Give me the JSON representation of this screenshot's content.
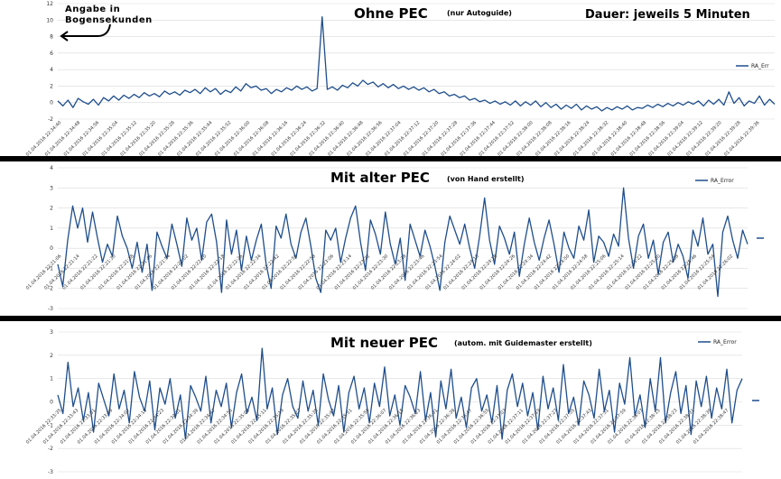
{
  "colors": {
    "series": "#1f4e8c",
    "separator": "#000000",
    "grid": "#d9d9d9"
  },
  "annotations": {
    "unit_note_line1": "Angabe in",
    "unit_note_line2": "Bogensekunden",
    "duration": "Dauer: jeweils 5 Minuten"
  },
  "chart_data": [
    {
      "type": "line",
      "title": "Ohne PEC",
      "subtitle": "(nur Autoguide)",
      "legend": "RA_Err",
      "legend_position": "right",
      "grid": true,
      "ylim": [
        -2,
        12
      ],
      "yticks": [
        -2,
        0,
        2,
        4,
        6,
        8,
        10,
        12
      ],
      "xlabel_prefix": "01.04.2016 22:",
      "x_time_start": "22:34:40",
      "x_step_seconds": 8,
      "x_label_count": 38,
      "series": [
        {
          "name": "RA_Err",
          "values": [
            0.2,
            -0.4,
            0.3,
            -0.6,
            0.5,
            0.1,
            -0.2,
            0.4,
            -0.3,
            0.6,
            0.2,
            0.8,
            0.3,
            0.9,
            0.5,
            1.0,
            0.6,
            1.2,
            0.8,
            1.1,
            0.7,
            1.4,
            1.0,
            1.3,
            0.9,
            1.5,
            1.2,
            1.6,
            1.1,
            1.8,
            1.3,
            1.7,
            1.0,
            1.5,
            1.2,
            1.9,
            1.4,
            2.3,
            1.8,
            2.0,
            1.5,
            1.7,
            1.1,
            1.6,
            1.3,
            1.8,
            1.5,
            2.0,
            1.6,
            1.9,
            1.4,
            1.7,
            10.4,
            1.6,
            1.9,
            1.5,
            2.1,
            1.8,
            2.4,
            2.0,
            2.7,
            2.2,
            2.5,
            1.9,
            2.3,
            1.8,
            2.2,
            1.7,
            2.0,
            1.6,
            1.9,
            1.5,
            1.8,
            1.3,
            1.6,
            1.1,
            1.3,
            0.8,
            1.0,
            0.6,
            0.8,
            0.3,
            0.5,
            0.1,
            0.3,
            -0.1,
            0.2,
            -0.2,
            0.1,
            -0.3,
            0.2,
            -0.4,
            0.1,
            -0.3,
            0.2,
            -0.5,
            0.0,
            -0.6,
            -0.2,
            -0.8,
            -0.3,
            -0.7,
            -0.2,
            -0.9,
            -0.4,
            -0.8,
            -0.5,
            -1.0,
            -0.6,
            -0.9,
            -0.5,
            -0.8,
            -0.4,
            -0.9,
            -0.6,
            -0.7,
            -0.3,
            -0.6,
            -0.2,
            -0.5,
            -0.1,
            -0.4,
            0.0,
            -0.3,
            0.1,
            -0.2,
            0.2,
            -0.4,
            0.3,
            -0.2,
            0.4,
            -0.3,
            1.3,
            -0.1,
            0.6,
            -0.4,
            0.2,
            -0.1,
            0.8,
            -0.3,
            0.4,
            -0.2
          ]
        }
      ]
    },
    {
      "type": "line",
      "title": "Mit alter PEC",
      "subtitle": "(von Hand erstellt)",
      "legend": "RA_Error",
      "legend_position": "top-right",
      "grid": true,
      "ylim": [
        -3,
        4
      ],
      "yticks": [
        -3,
        -2,
        -1,
        0,
        1,
        2,
        3,
        4
      ],
      "xlabel_prefix": "01.04.2016 22:",
      "x_time_start": "22:21:06",
      "x_step_seconds": 8,
      "x_label_count": 38,
      "series": [
        {
          "name": "RA_Error",
          "values": [
            -0.8,
            -1.9,
            0.4,
            2.1,
            1.0,
            2.0,
            0.3,
            1.8,
            0.5,
            -0.7,
            0.2,
            -0.4,
            1.6,
            0.6,
            0.0,
            -1.0,
            0.3,
            -1.2,
            0.2,
            -2.1,
            0.8,
            0.1,
            -0.5,
            1.2,
            0.2,
            -0.9,
            1.5,
            0.4,
            1.0,
            -0.6,
            1.3,
            1.7,
            0.3,
            -2.2,
            1.4,
            -0.3,
            0.9,
            -1.1,
            0.6,
            -0.6,
            0.4,
            1.2,
            -0.8,
            -2.0,
            1.1,
            0.5,
            1.7,
            0.2,
            -0.5,
            0.8,
            1.5,
            0.1,
            -1.5,
            -2.2,
            0.9,
            0.4,
            1.0,
            -0.7,
            0.5,
            1.5,
            2.1,
            0.3,
            -1.1,
            1.4,
            0.7,
            -0.3,
            1.8,
            0.2,
            -0.8,
            0.5,
            -1.6,
            1.2,
            0.4,
            -0.4,
            0.9,
            0.1,
            -0.9,
            -2.1,
            0.3,
            1.6,
            0.9,
            0.2,
            1.2,
            0.0,
            -1.0,
            0.6,
            2.5,
            0.4,
            -0.8,
            1.1,
            0.5,
            -0.3,
            0.8,
            -1.4,
            0.2,
            1.5,
            0.3,
            -0.6,
            0.5,
            1.4,
            0.2,
            -1.2,
            0.8,
            0.0,
            -0.5,
            1.1,
            0.4,
            1.9,
            -0.7,
            0.6,
            0.3,
            -0.4,
            0.7,
            0.1,
            3.0,
            0.5,
            -1.0,
            0.6,
            1.2,
            -0.5,
            0.4,
            -1.3,
            0.3,
            0.8,
            -0.7,
            0.2,
            -0.4,
            -1.5,
            0.9,
            0.1,
            1.5,
            -0.3,
            0.2,
            -2.4,
            0.8,
            1.6,
            0.4,
            -0.5,
            0.9,
            0.2
          ]
        }
      ]
    },
    {
      "type": "line",
      "title": "Mit neuer PEC",
      "subtitle": "(autom. mit Guidemaster erstellt)",
      "legend": "RA_Error",
      "legend_position": "top-right",
      "grid": true,
      "ylim": [
        -3,
        3
      ],
      "yticks": [
        -3,
        -2,
        -1,
        0,
        1,
        2,
        3
      ],
      "xlabel_prefix": "01.04.2016 22:",
      "x_time_start": "22:33:35",
      "x_step_seconds": 8,
      "x_label_count": 40,
      "series": [
        {
          "name": "RA_Error",
          "values": [
            0.3,
            -0.5,
            1.7,
            -0.2,
            0.6,
            -0.8,
            0.4,
            -1.3,
            0.8,
            0.1,
            -0.6,
            1.2,
            -0.3,
            0.5,
            -0.9,
            1.3,
            0.2,
            -0.4,
            0.9,
            -1.2,
            0.6,
            -0.1,
            1.0,
            -0.7,
            0.3,
            -1.6,
            0.7,
            0.2,
            -0.4,
            1.1,
            -0.9,
            0.5,
            -0.2,
            0.8,
            -1.1,
            0.4,
            1.2,
            -0.5,
            0.2,
            -0.8,
            2.3,
            -0.3,
            0.6,
            -1.4,
            0.3,
            1.0,
            -0.2,
            -0.7,
            0.9,
            -0.4,
            0.5,
            -1.0,
            1.2,
            0.1,
            -0.6,
            0.7,
            -1.3,
            0.4,
            1.1,
            -0.3,
            0.6,
            -0.9,
            0.8,
            -0.2,
            1.5,
            -0.6,
            0.3,
            -1.0,
            0.7,
            0.2,
            -0.5,
            1.3,
            -0.8,
            0.4,
            -1.5,
            0.9,
            -0.3,
            1.4,
            -0.7,
            0.2,
            -1.1,
            0.6,
            1.0,
            -0.4,
            0.3,
            -0.9,
            0.7,
            -1.6,
            0.5,
            1.2,
            -0.2,
            0.8,
            -0.6,
            0.4,
            -1.2,
            1.1,
            -0.3,
            0.6,
            -0.8,
            1.6,
            -0.5,
            0.2,
            -1.0,
            0.9,
            0.3,
            -0.7,
            1.4,
            -0.4,
            0.5,
            -1.3,
            0.8,
            -0.1,
            1.9,
            -0.6,
            0.3,
            -1.1,
            1.0,
            -0.4,
            1.9,
            -0.9,
            0.4,
            1.3,
            -0.5,
            0.7,
            -1.4,
            0.9,
            -0.2,
            1.1,
            -0.7,
            0.6,
            -0.3,
            1.4,
            -0.9,
            0.5,
            1.0
          ]
        }
      ]
    }
  ]
}
